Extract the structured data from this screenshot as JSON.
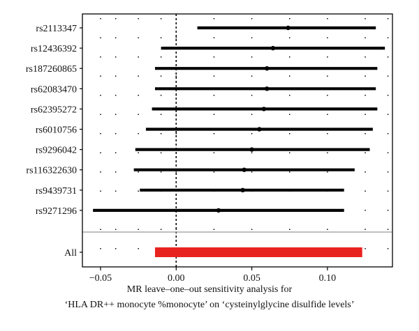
{
  "chart_data": {
    "type": "forest",
    "title": "",
    "xlabel_line1": "MR leave–one–out sensitivity analysis for",
    "xlabel_line2": "‘HLA DR++ monocyte %monocyte’ on ‘cysteinylglycine disulfide levels’",
    "ylabel": "",
    "xlim": [
      -0.062,
      0.143
    ],
    "x_ticks": [
      -0.05,
      0.0,
      0.05,
      0.1
    ],
    "x_tick_labels": [
      "−0.05",
      "0.00",
      "0.05",
      "0.10"
    ],
    "reference_line": 0,
    "grid": "dotted",
    "rows": [
      {
        "label": "rs2113347",
        "estimate": 0.074,
        "lower": 0.014,
        "upper": 0.132
      },
      {
        "label": "rs12436392",
        "estimate": 0.064,
        "lower": -0.01,
        "upper": 0.138
      },
      {
        "label": "rs187260865",
        "estimate": 0.06,
        "lower": -0.014,
        "upper": 0.133
      },
      {
        "label": "rs62083470",
        "estimate": 0.06,
        "lower": -0.014,
        "upper": 0.132
      },
      {
        "label": "rs62395272",
        "estimate": 0.058,
        "lower": -0.016,
        "upper": 0.133
      },
      {
        "label": "rs6010756",
        "estimate": 0.055,
        "lower": -0.02,
        "upper": 0.13
      },
      {
        "label": "rs9296042",
        "estimate": 0.05,
        "lower": -0.027,
        "upper": 0.128
      },
      {
        "label": "rs116322630",
        "estimate": 0.045,
        "lower": -0.028,
        "upper": 0.118
      },
      {
        "label": "rs9439731",
        "estimate": 0.044,
        "lower": -0.024,
        "upper": 0.111
      },
      {
        "label": "rs9271296",
        "estimate": 0.028,
        "lower": -0.055,
        "upper": 0.111
      }
    ],
    "overall": {
      "label": "All",
      "estimate": 0.054,
      "lower": -0.014,
      "upper": 0.123,
      "color": "#e8231f"
    },
    "colors": {
      "row_line": "#000000",
      "overall_bar": "#e8231f",
      "divider": "#aaaaaa"
    }
  }
}
